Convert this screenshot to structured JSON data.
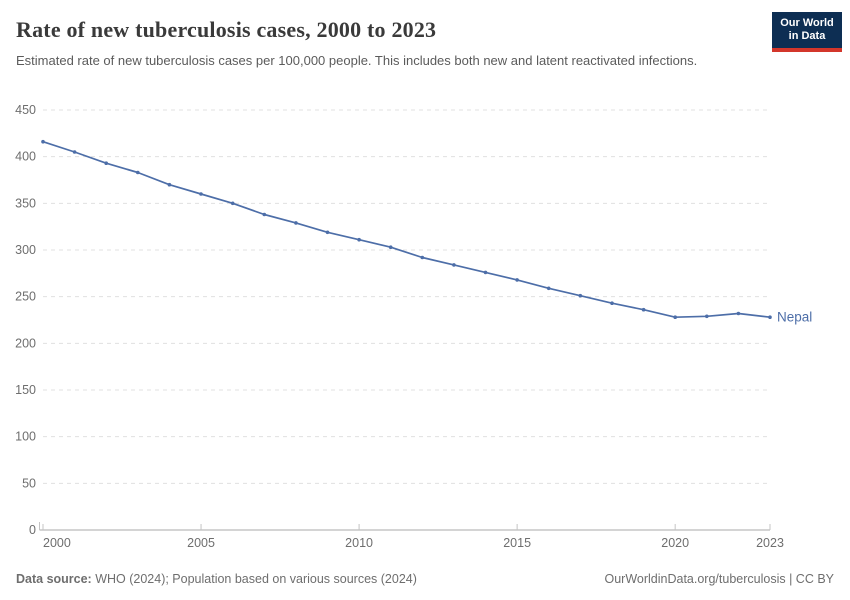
{
  "header": {
    "title": "Rate of new tuberculosis cases, 2000 to 2023",
    "subtitle": "Estimated rate of new tuberculosis cases per 100,000 people. This includes both new and latent reactivated infections.",
    "logo": {
      "line1": "Our World",
      "line2": "in Data"
    }
  },
  "chart_data": {
    "type": "line",
    "title": "Rate of new tuberculosis cases, 2000 to 2023",
    "xlabel": "",
    "ylabel": "",
    "xlim": [
      2000,
      2023
    ],
    "ylim": [
      0,
      450
    ],
    "xticks": [
      2000,
      2005,
      2010,
      2015,
      2020,
      2023
    ],
    "yticks": [
      0,
      50,
      100,
      150,
      200,
      250,
      300,
      350,
      400,
      450
    ],
    "grid": "horizontal-dashed",
    "legend_position": "end-of-line-label",
    "series": [
      {
        "name": "Nepal",
        "color": "#4d6ea8",
        "x": [
          2000,
          2001,
          2002,
          2003,
          2004,
          2005,
          2006,
          2007,
          2008,
          2009,
          2010,
          2011,
          2012,
          2013,
          2014,
          2015,
          2016,
          2017,
          2018,
          2019,
          2020,
          2021,
          2022,
          2023
        ],
        "values": [
          416,
          405,
          393,
          383,
          370,
          360,
          350,
          338,
          329,
          319,
          311,
          303,
          292,
          284,
          276,
          268,
          259,
          251,
          243,
          236,
          228,
          229,
          232,
          228
        ]
      }
    ]
  },
  "footer": {
    "datasource_label": "Data source:",
    "datasource_text": " WHO (2024); Population based on various sources (2024)",
    "link_text": "OurWorldinData.org/tuberculosis | CC BY"
  },
  "colors": {
    "series_line": "#4d6ea8",
    "logo_navy": "#0d2e53",
    "logo_red": "#d3362b",
    "gridline": "#e0e0e0",
    "axis_line": "#a9a9a9",
    "text_muted": "#6e6e6e"
  }
}
